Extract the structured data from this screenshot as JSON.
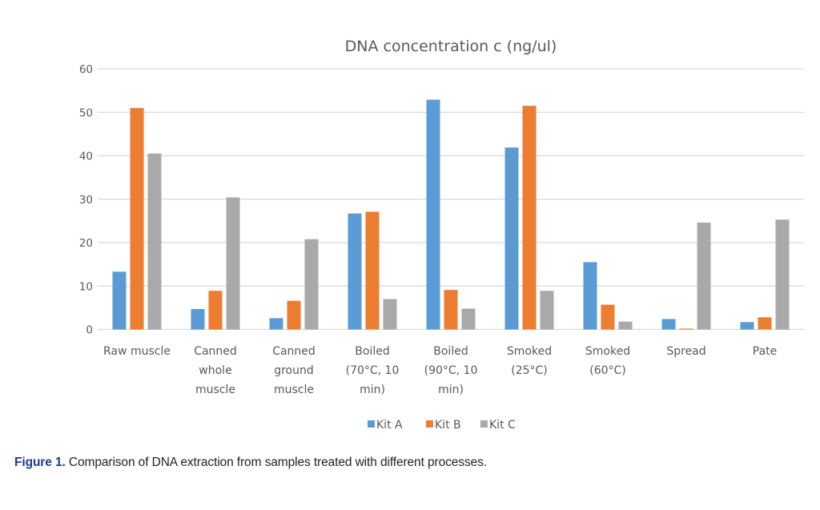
{
  "chart_data": {
    "type": "bar",
    "title": "DNA concentration c (ng/ul)",
    "xlabel": "",
    "ylabel": "",
    "ylim": [
      0,
      60
    ],
    "yticks": [
      0,
      10,
      20,
      30,
      40,
      50,
      60
    ],
    "grid": true,
    "legend_position": "bottom",
    "categories": [
      [
        "Raw muscle"
      ],
      [
        "Canned",
        "whole",
        "muscle"
      ],
      [
        "Canned",
        "ground",
        "muscle"
      ],
      [
        "Boiled",
        "(70°C, 10",
        "min)"
      ],
      [
        "Boiled",
        "(90°C, 10",
        "min)"
      ],
      [
        "Smoked",
        "(25°C)"
      ],
      [
        "Smoked",
        "(60°C)"
      ],
      [
        "Spread"
      ],
      [
        "Pate"
      ]
    ],
    "category_names": [
      "Raw muscle",
      "Canned whole muscle",
      "Canned ground muscle",
      "Boiled (70°C, 10 min)",
      "Boiled (90°C, 10 min)",
      "Smoked (25°C)",
      "Smoked (60°C)",
      "Spread",
      "Pate"
    ],
    "series": [
      {
        "name": "Kit A",
        "color": "#5b9bd5",
        "values": [
          13.3,
          4.7,
          2.6,
          26.7,
          52.9,
          41.9,
          15.5,
          2.4,
          1.7
        ]
      },
      {
        "name": "Kit B",
        "color": "#ed7d31",
        "values": [
          51.0,
          8.9,
          6.6,
          27.1,
          9.1,
          51.5,
          5.7,
          0.2,
          2.8
        ]
      },
      {
        "name": "Kit C",
        "color": "#a9a9ab",
        "values": [
          40.5,
          30.4,
          20.8,
          7.0,
          4.8,
          8.9,
          1.8,
          24.6,
          25.3
        ]
      }
    ]
  },
  "caption": {
    "label": "Figure 1.",
    "text": " Comparison of DNA extraction from samples treated with different processes."
  }
}
